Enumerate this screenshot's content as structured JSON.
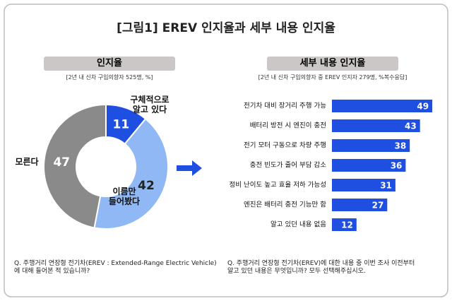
{
  "title": "[그림1] EREV 인지율과 세부 내용 인지율",
  "chart_data": [
    {
      "type": "donut",
      "title": "인지율",
      "subtitle": "[2년 내 신차 구입의향자 525명, %]",
      "categories": [
        "구체적으로\n알고 있다",
        "이름만\n들어봤다",
        "모른다"
      ],
      "values": [
        11,
        42,
        47
      ],
      "colors": [
        "#1f4fe0",
        "#90b8f4",
        "#8a8a8a"
      ],
      "note": "Q. 주행거리 연장형 전기차(EREV : Extended-Range Electric Vehicle)\n에 대해 들어본 적 있습니까?"
    },
    {
      "type": "bar",
      "orientation": "horizontal",
      "title": "세부 내용 인지율",
      "subtitle": "[2년 내 신차 구입의향자 중 EREV 인지자 279명, %복수응답]",
      "categories": [
        "전기차 대비 장거리 주행 가능",
        "배터리 방전 시 엔진이 충전",
        "전기 모터 구동으로 차량 주행",
        "충전 빈도가 줄어 부담 감소",
        "정비 난이도 높고 효율 저하 가능성",
        "엔진은 배터리 충전 기능만 함",
        "알고 있던 내용 없음"
      ],
      "values": [
        49,
        43,
        38,
        36,
        31,
        27,
        12
      ],
      "color": "#1f4fe0",
      "xlim": [
        0,
        50
      ],
      "note": "Q. 주행거리 연장형 전기차(EREV)에 대한 내용 중 이번 조사 이전부터\n알고 있던 내용은 무엇입니까? 모두 선택해주십시오."
    }
  ]
}
